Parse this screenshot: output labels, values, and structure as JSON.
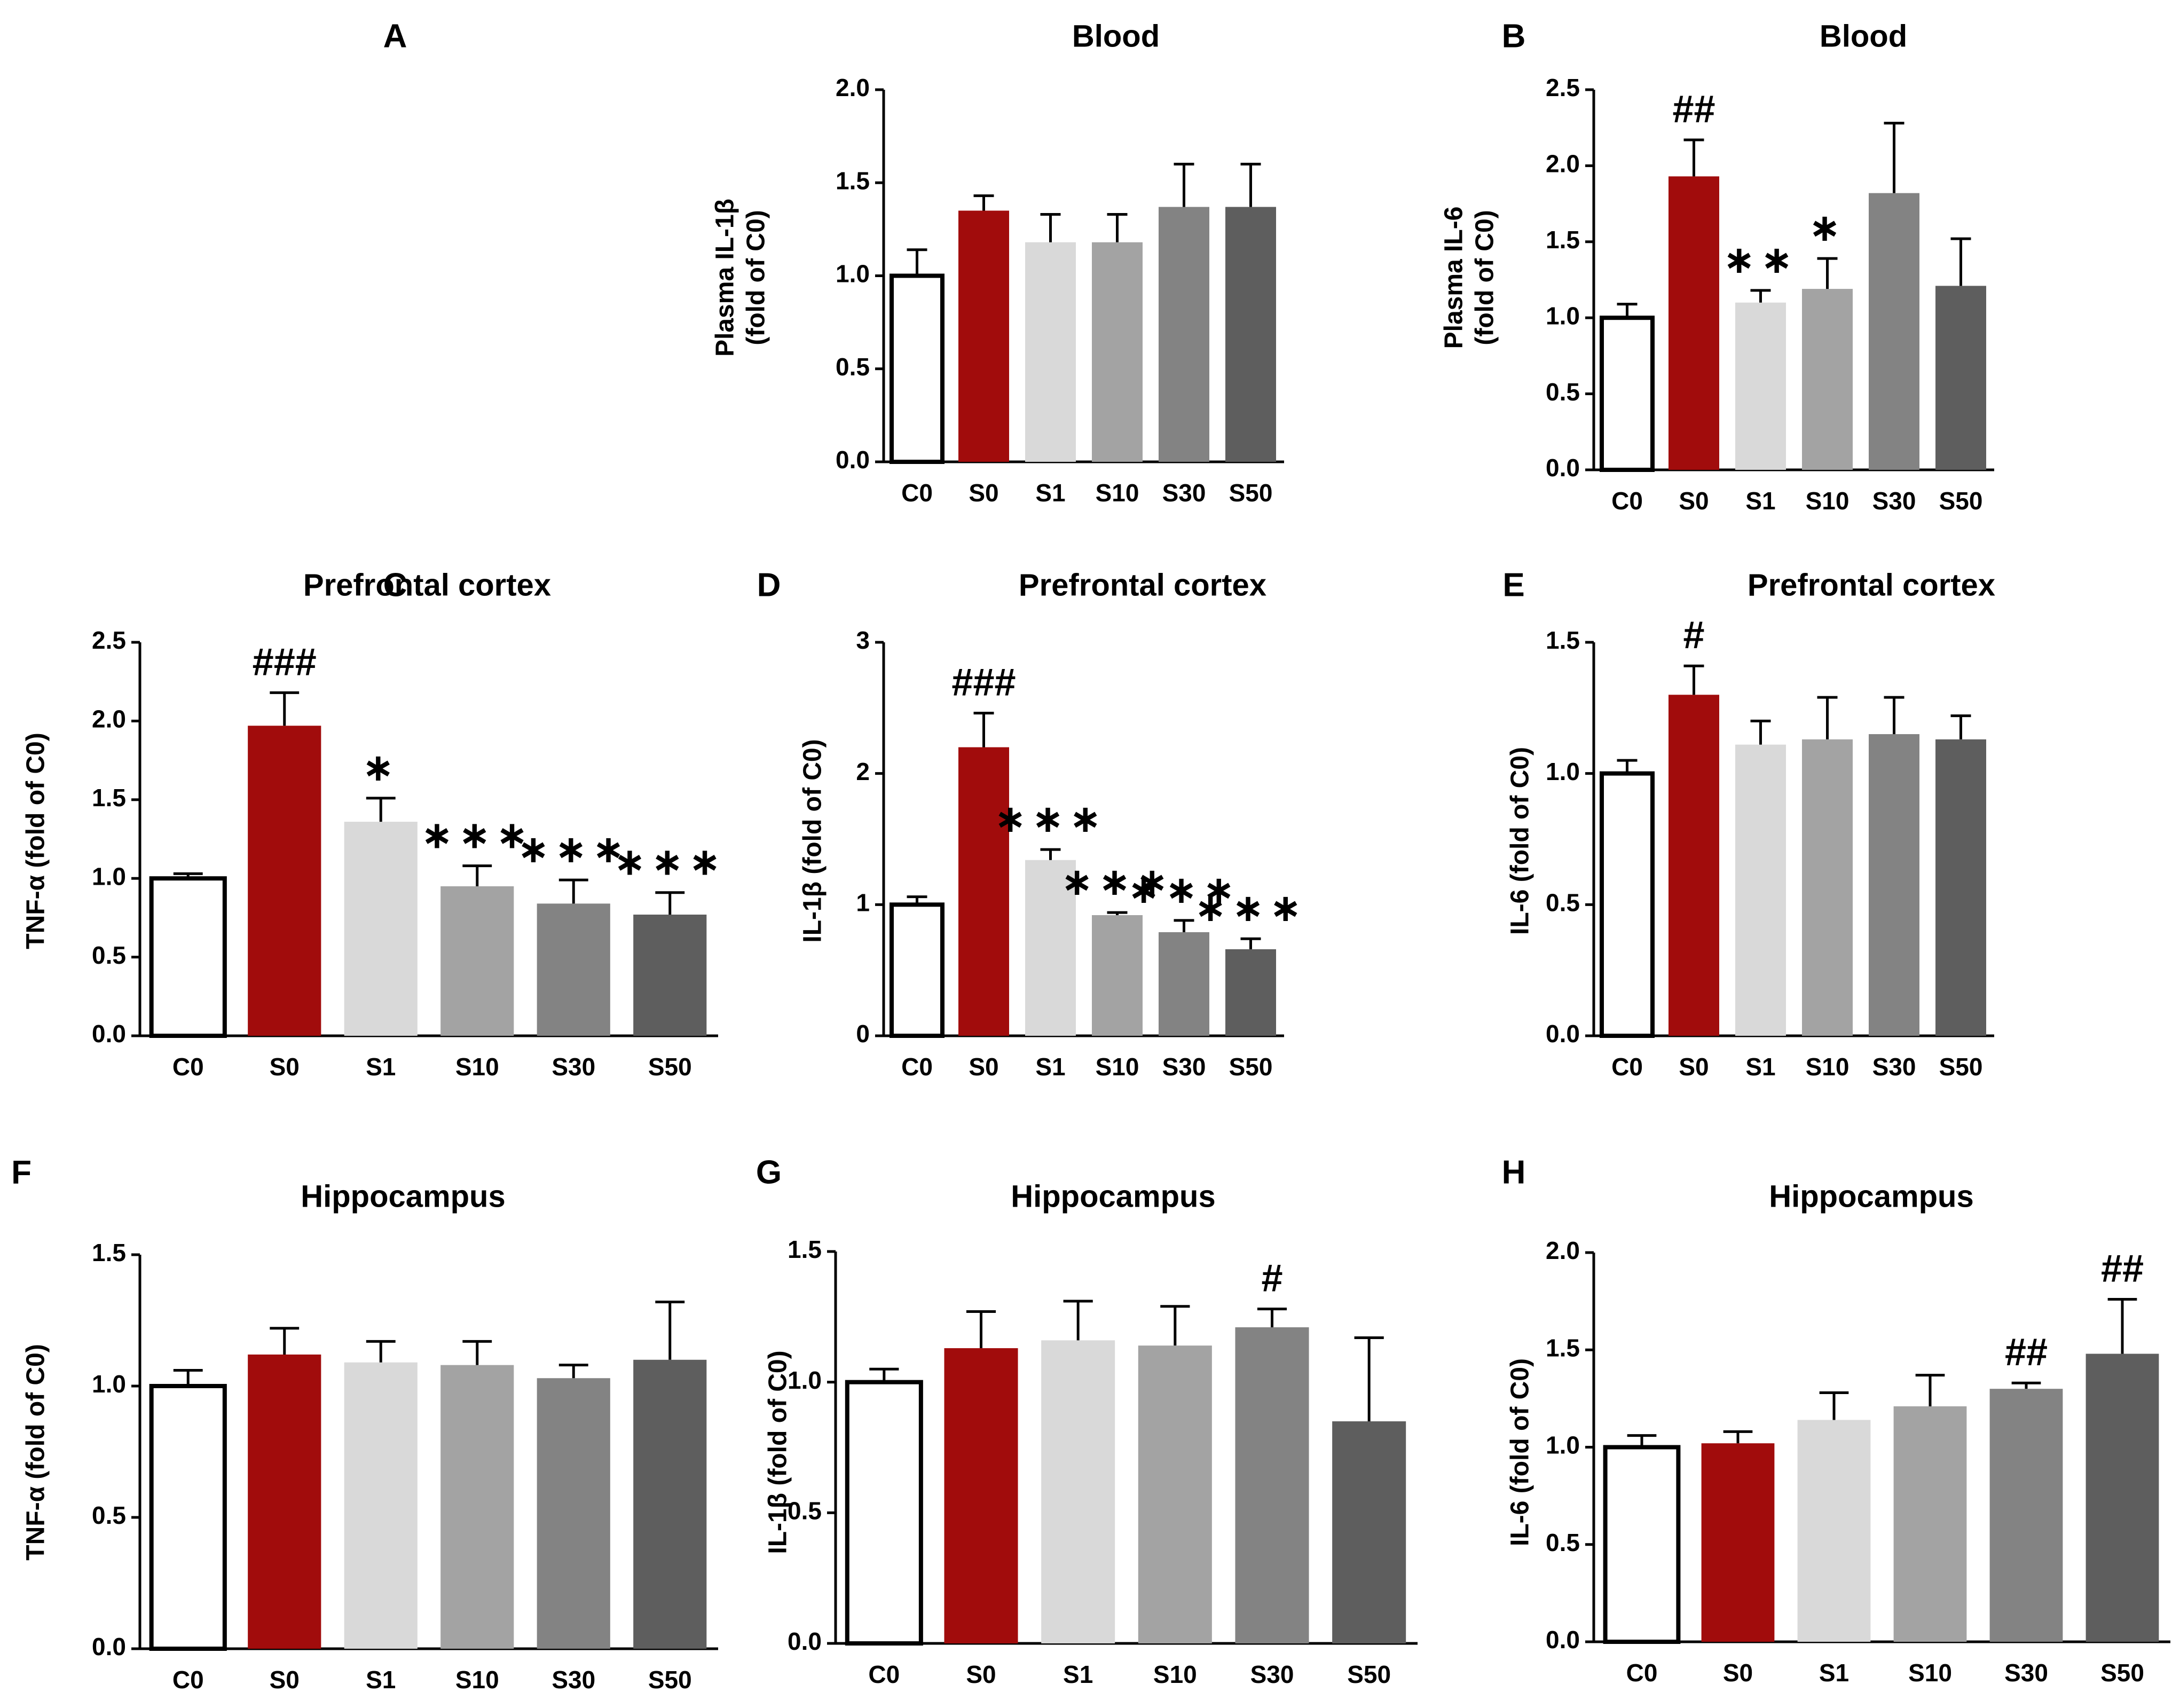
{
  "figure": {
    "colors": {
      "C0": "#ffffff",
      "S0": "#a10c0c",
      "S1": "#d9d9d9",
      "S10": "#a3a3a3",
      "S30": "#838383",
      "S50": "#5e5e5e",
      "axis": "#000000"
    }
  },
  "chart_data": [
    {
      "id": "A",
      "panel_label": "A",
      "type": "bar",
      "title": "Blood",
      "ylabel": [
        "Plasma IL-1β",
        "(fold of C0)"
      ],
      "categories": [
        "C0",
        "S0",
        "S1",
        "S10",
        "S30",
        "S50"
      ],
      "values": [
        1.0,
        1.35,
        1.18,
        1.18,
        1.37,
        1.37
      ],
      "errors": [
        0.14,
        0.08,
        0.15,
        0.15,
        0.23,
        0.23
      ],
      "annotations": [
        "",
        "",
        "",
        "",
        "",
        ""
      ],
      "ylim": [
        0,
        2.0
      ],
      "yticks": [
        0.0,
        0.5,
        1.0,
        1.5,
        2.0
      ],
      "ytick_labels": [
        "0.0",
        "0.5",
        "1.0",
        "1.5",
        "2.0"
      ]
    },
    {
      "id": "B",
      "panel_label": "B",
      "type": "bar",
      "title": "Blood",
      "ylabel": [
        "Plasma IL-6",
        "(fold of C0)"
      ],
      "categories": [
        "C0",
        "S0",
        "S1",
        "S10",
        "S30",
        "S50"
      ],
      "values": [
        1.0,
        1.93,
        1.1,
        1.19,
        1.82,
        1.21
      ],
      "errors": [
        0.09,
        0.24,
        0.08,
        0.2,
        0.46,
        0.31
      ],
      "annotations": [
        "",
        "##",
        "**",
        "*",
        "",
        ""
      ],
      "ylim": [
        0,
        2.5
      ],
      "yticks": [
        0.0,
        0.5,
        1.0,
        1.5,
        2.0,
        2.5
      ],
      "ytick_labels": [
        "0.0",
        "0.5",
        "1.0",
        "1.5",
        "2.0",
        "2.5"
      ]
    },
    {
      "id": "C",
      "panel_label": "C",
      "type": "bar",
      "title": "Prefrontal cortex",
      "ylabel": [
        "TNF-α (fold of C0)"
      ],
      "categories": [
        "C0",
        "S0",
        "S1",
        "S10",
        "S30",
        "S50"
      ],
      "values": [
        1.0,
        1.97,
        1.36,
        0.95,
        0.84,
        0.77
      ],
      "errors": [
        0.03,
        0.21,
        0.15,
        0.13,
        0.15,
        0.14
      ],
      "annotations": [
        "",
        "###",
        "*",
        "***",
        "***",
        "***"
      ],
      "ylim": [
        0,
        2.5
      ],
      "yticks": [
        0.0,
        0.5,
        1.0,
        1.5,
        2.0,
        2.5
      ],
      "ytick_labels": [
        "0.0",
        "0.5",
        "1.0",
        "1.5",
        "2.0",
        "2.5"
      ]
    },
    {
      "id": "D",
      "panel_label": "D",
      "type": "bar",
      "title": "Prefrontal cortex",
      "ylabel": [
        "IL-1β (fold of C0)"
      ],
      "categories": [
        "C0",
        "S0",
        "S1",
        "S10",
        "S30",
        "S50"
      ],
      "values": [
        1.0,
        2.2,
        1.34,
        0.92,
        0.79,
        0.66
      ],
      "errors": [
        0.06,
        0.26,
        0.08,
        0.02,
        0.09,
        0.08
      ],
      "annotations": [
        "",
        "###",
        "***",
        "***",
        "***",
        "***"
      ],
      "ylim": [
        0,
        3
      ],
      "yticks": [
        0,
        1,
        2,
        3
      ],
      "ytick_labels": [
        "0",
        "1",
        "2",
        "3"
      ]
    },
    {
      "id": "E",
      "panel_label": "E",
      "type": "bar",
      "title": "Prefrontal cortex",
      "ylabel": [
        "IL-6 (fold of C0)"
      ],
      "categories": [
        "C0",
        "S0",
        "S1",
        "S10",
        "S30",
        "S50"
      ],
      "values": [
        1.0,
        1.3,
        1.11,
        1.13,
        1.15,
        1.13
      ],
      "errors": [
        0.05,
        0.11,
        0.09,
        0.16,
        0.14,
        0.09
      ],
      "annotations": [
        "",
        "#",
        "",
        "",
        "",
        ""
      ],
      "ylim": [
        0,
        1.5
      ],
      "yticks": [
        0.0,
        0.5,
        1.0,
        1.5
      ],
      "ytick_labels": [
        "0.0",
        "0.5",
        "1.0",
        "1.5"
      ]
    },
    {
      "id": "F",
      "panel_label": "F",
      "type": "bar",
      "title": "Hippocampus",
      "ylabel": [
        "TNF-α (fold of C0)"
      ],
      "categories": [
        "C0",
        "S0",
        "S1",
        "S10",
        "S30",
        "S50"
      ],
      "values": [
        1.0,
        1.12,
        1.09,
        1.08,
        1.03,
        1.1
      ],
      "errors": [
        0.06,
        0.1,
        0.08,
        0.09,
        0.05,
        0.22
      ],
      "annotations": [
        "",
        "",
        "",
        "",
        "",
        ""
      ],
      "ylim": [
        0,
        1.5
      ],
      "yticks": [
        0.0,
        0.5,
        1.0,
        1.5
      ],
      "ytick_labels": [
        "0.0",
        "0.5",
        "1.0",
        "1.5"
      ]
    },
    {
      "id": "G",
      "panel_label": "G",
      "type": "bar",
      "title": "Hippocampus",
      "ylabel": [
        "IL-1β (fold of C0)"
      ],
      "categories": [
        "C0",
        "S0",
        "S1",
        "S10",
        "S30",
        "S50"
      ],
      "values": [
        1.0,
        1.13,
        1.16,
        1.14,
        1.21,
        0.85
      ],
      "errors": [
        0.05,
        0.14,
        0.15,
        0.15,
        0.07,
        0.32
      ],
      "annotations": [
        "",
        "",
        "",
        "",
        "#",
        ""
      ],
      "ylim": [
        0,
        1.5
      ],
      "yticks": [
        0.0,
        0.5,
        1.0,
        1.5
      ],
      "ytick_labels": [
        "0.0",
        "0.5",
        "1.0",
        "1.5"
      ]
    },
    {
      "id": "H",
      "panel_label": "H",
      "type": "bar",
      "title": "Hippocampus",
      "ylabel": [
        "IL-6 (fold of C0)"
      ],
      "categories": [
        "C0",
        "S0",
        "S1",
        "S10",
        "S30",
        "S50"
      ],
      "values": [
        1.0,
        1.02,
        1.14,
        1.21,
        1.3,
        1.48
      ],
      "errors": [
        0.06,
        0.06,
        0.14,
        0.16,
        0.03,
        0.28
      ],
      "annotations": [
        "",
        "",
        "",
        "",
        "##",
        "##"
      ],
      "ylim": [
        0,
        2.0
      ],
      "yticks": [
        0.0,
        0.5,
        1.0,
        1.5,
        2.0
      ],
      "ytick_labels": [
        "0.0",
        "0.5",
        "1.0",
        "1.5",
        "2.0"
      ]
    }
  ]
}
